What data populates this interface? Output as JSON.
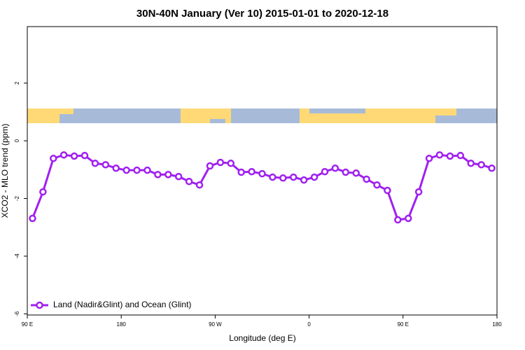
{
  "chart_data": {
    "type": "line",
    "title": "30N-40N January (Ver 10)   2015-01-01 to 2020-12-18",
    "x_label": "Longitude (deg E)",
    "y_label": "XCO2 - MLO trend (ppm)",
    "x": [
      95,
      105,
      115,
      125,
      135,
      145,
      155,
      165,
      175,
      185,
      195,
      205,
      215,
      225,
      235,
      245,
      255,
      265,
      275,
      285,
      295,
      305,
      315,
      325,
      335,
      345,
      355,
      365,
      375,
      385,
      395,
      405,
      415,
      425,
      435,
      445,
      455,
      465,
      475,
      485,
      495,
      505,
      515,
      525,
      535
    ],
    "series": [
      {
        "name": "Land (Nadir&Glint) and Ocean (Glint)",
        "color": "#a020f0",
        "values": [
          -2.69,
          -1.77,
          -0.61,
          -0.49,
          -0.53,
          -0.51,
          -0.78,
          -0.83,
          -0.95,
          -1.02,
          -1.02,
          -1.02,
          -1.17,
          -1.17,
          -1.24,
          -1.41,
          -1.53,
          -0.87,
          -0.75,
          -0.78,
          -1.09,
          -1.07,
          -1.14,
          -1.26,
          -1.29,
          -1.26,
          -1.36,
          -1.26,
          -1.07,
          -0.95,
          -1.09,
          -1.12,
          -1.33,
          -1.53,
          -1.72,
          -2.74,
          -2.69,
          -1.77,
          -0.61,
          -0.49,
          -0.53,
          -0.51,
          -0.78,
          -0.83,
          -0.95
        ]
      }
    ],
    "xlim": [
      90,
      540
    ],
    "ylim": [
      -6.04,
      3.96
    ],
    "xticks": [
      {
        "value": 90,
        "label": "90 E"
      },
      180,
      {
        "value": 270,
        "label": "90 W"
      },
      {
        "value": 360,
        "label": "0"
      },
      {
        "value": 450,
        "label": "90 E"
      },
      {
        "value": 540,
        "label": "180"
      }
    ],
    "yticks": [
      -6,
      -4,
      -2,
      0,
      2
    ],
    "legend": "lower left"
  }
}
